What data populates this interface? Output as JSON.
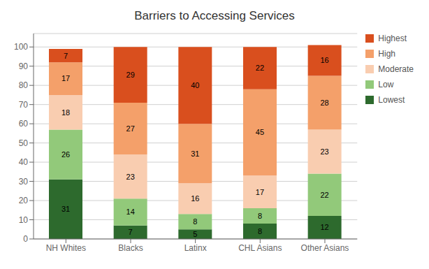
{
  "chart_data": {
    "type": "bar",
    "title": "Barriers to Accessing Services",
    "categories": [
      "NH Whites",
      "Blacks",
      "Latinx",
      "CHL Asians",
      "Other Asians"
    ],
    "series": [
      {
        "name": "Lowest",
        "color": "#2d6a2d",
        "values": [
          31,
          7,
          5,
          8,
          12
        ]
      },
      {
        "name": "Low",
        "color": "#92c97a",
        "values": [
          26,
          14,
          8,
          8,
          22
        ]
      },
      {
        "name": "Moderate",
        "color": "#f9cdb0",
        "values": [
          18,
          23,
          16,
          17,
          23
        ]
      },
      {
        "name": "High",
        "color": "#f4a06a",
        "values": [
          17,
          27,
          31,
          45,
          28
        ]
      },
      {
        "name": "Highest",
        "color": "#d94f1e",
        "values": [
          7,
          29,
          40,
          22,
          16
        ]
      }
    ],
    "ylim": [
      0,
      107
    ],
    "yticks": [
      0,
      10,
      20,
      30,
      40,
      50,
      60,
      70,
      80,
      90,
      100
    ],
    "stacked": true,
    "data_labels": true,
    "grid": true,
    "legend": "right"
  }
}
